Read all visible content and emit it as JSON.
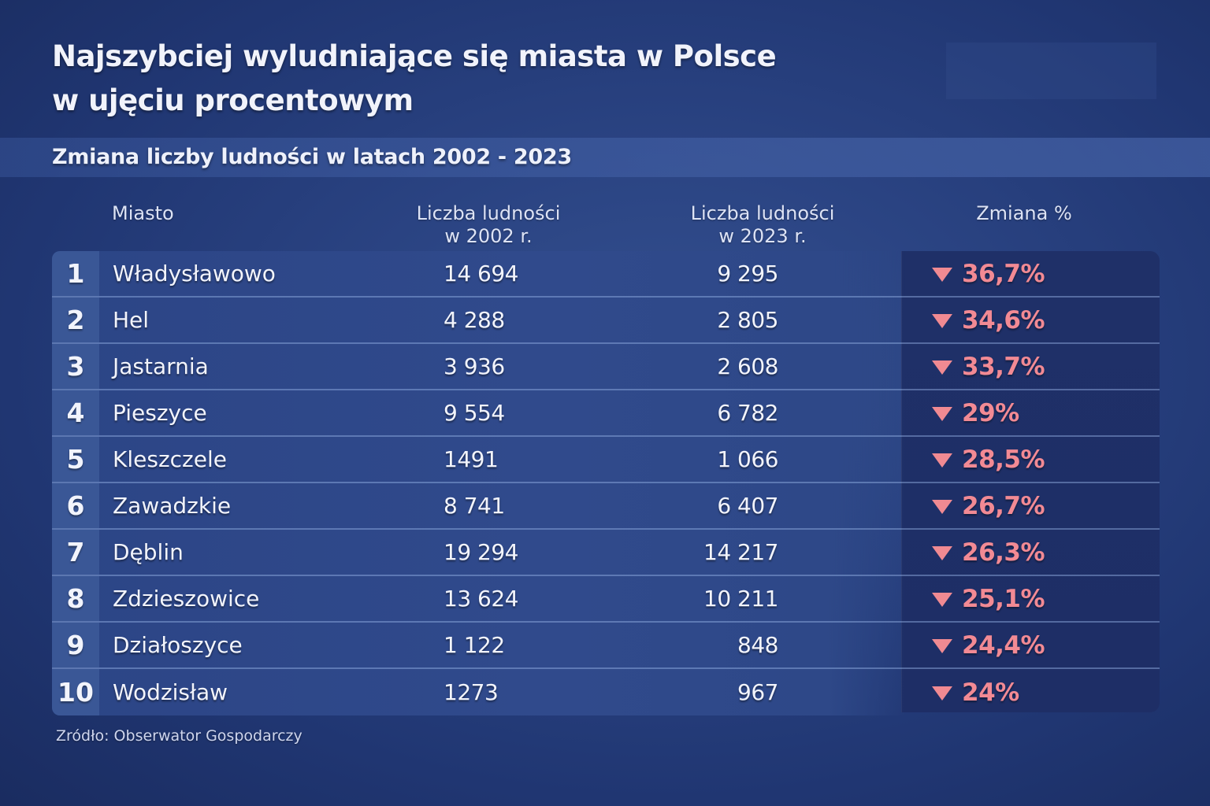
{
  "header": {
    "title_line1": "Najszybciej wyludniające się miasta w Polsce",
    "title_line2": "w ujęciu procentowym",
    "subtitle": "Zmiana liczby ludności w latach 2002 - 2023"
  },
  "table": {
    "columns": {
      "city": "Miasto",
      "pop2002_line1": "Liczba ludności",
      "pop2002_line2": "w 2002 r.",
      "pop2023_line1": "Liczba ludności",
      "pop2023_line2": "w 2023 r.",
      "change": "Zmiana %"
    },
    "rows": [
      {
        "rank": "1",
        "city": "Władysławowo",
        "pop2002": "14 694",
        "pop2023": "9 295",
        "change": "36,7%"
      },
      {
        "rank": "2",
        "city": "Hel",
        "pop2002": "4 288",
        "pop2023": "2 805",
        "change": "34,6%"
      },
      {
        "rank": "3",
        "city": "Jastarnia",
        "pop2002": "3 936",
        "pop2023": "2 608",
        "change": "33,7%"
      },
      {
        "rank": "4",
        "city": "Pieszyce",
        "pop2002": "9 554",
        "pop2023": "6 782",
        "change": "29%"
      },
      {
        "rank": "5",
        "city": "Kleszczele",
        "pop2002": "1491",
        "pop2023": "1 066",
        "change": "28,5%"
      },
      {
        "rank": "6",
        "city": "Zawadzkie",
        "pop2002": "8 741",
        "pop2023": "6 407",
        "change": "26,7%"
      },
      {
        "rank": "7",
        "city": "Dęblin",
        "pop2002": "19 294",
        "pop2023": "14 217",
        "change": "26,3%"
      },
      {
        "rank": "8",
        "city": "Zdzieszowice",
        "pop2002": "13 624",
        "pop2023": "10 211",
        "change": "25,1%"
      },
      {
        "rank": "9",
        "city": "Działoszyce",
        "pop2002": "1 122",
        "pop2023": "848",
        "change": "24,4%"
      },
      {
        "rank": "10",
        "city": "Wodzisław",
        "pop2002": "1273",
        "pop2023": "967",
        "change": "24%"
      }
    ],
    "change_icon": "down-triangle-icon",
    "change_color": "#f28a94"
  },
  "footer": {
    "source": "Zródło: Obserwator Gospodarczy"
  },
  "colors": {
    "background": "#2a4382",
    "row": "#304a8c",
    "rank_cell": "#3a5796",
    "change_panel": "#1f3068",
    "negative": "#f28a94"
  },
  "chart_data": {
    "type": "table",
    "title": "Najszybciej wyludniające się miasta w Polsce w ujęciu procentowym",
    "subtitle": "Zmiana liczby ludności w latach 2002 - 2023",
    "columns": [
      "Miasto",
      "Liczba ludności w 2002 r.",
      "Liczba ludności w 2023 r.",
      "Zmiana %"
    ],
    "categories": [
      "Władysławowo",
      "Hel",
      "Jastarnia",
      "Pieszyce",
      "Kleszczele",
      "Zawadzkie",
      "Dęblin",
      "Zdzieszowice",
      "Działoszyce",
      "Wodzisław"
    ],
    "series": [
      {
        "name": "Liczba ludności w 2002 r.",
        "values": [
          14694,
          4288,
          3936,
          9554,
          1491,
          8741,
          19294,
          13624,
          1122,
          1273
        ]
      },
      {
        "name": "Liczba ludności w 2023 r.",
        "values": [
          9295,
          2805,
          2608,
          6782,
          1066,
          6407,
          14217,
          10211,
          848,
          967
        ]
      },
      {
        "name": "Zmiana %",
        "values": [
          -36.7,
          -34.6,
          -33.7,
          -29.0,
          -28.5,
          -26.7,
          -26.3,
          -25.1,
          -24.4,
          -24.0
        ]
      }
    ],
    "source": "Zródło: Obserwator Gospodarczy"
  }
}
